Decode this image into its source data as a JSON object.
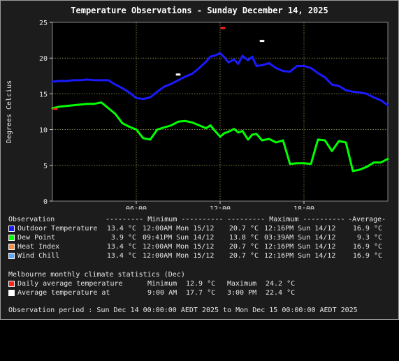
{
  "chart_data": {
    "type": "line",
    "title": "Temperature Observations - Sunday December 14, 2025",
    "ylabel": "Degrees Celcius",
    "xlabel": "",
    "ylim": [
      0,
      25
    ],
    "xlim_hours": [
      0,
      24
    ],
    "yticks": [
      0,
      5,
      10,
      15,
      20,
      25
    ],
    "xticks": [
      {
        "h": 6,
        "label": "06:00"
      },
      {
        "h": 12,
        "label": "12:00"
      },
      {
        "h": 18,
        "label": "18:00"
      }
    ],
    "grid": true,
    "series": [
      {
        "name": "Outdoor Temperature",
        "color": "#1a1aff",
        "x": [
          0,
          0.5,
          1,
          1.5,
          2,
          2.5,
          3,
          3.5,
          4,
          4.5,
          5,
          5.5,
          6,
          6.5,
          7,
          7.5,
          8,
          8.5,
          9,
          9.5,
          10,
          10.5,
          11,
          11.3,
          11.7,
          12,
          12.3,
          12.6,
          13,
          13.3,
          13.6,
          14,
          14.3,
          14.6,
          15,
          15.5,
          16,
          16.5,
          17,
          17.5,
          18,
          18.5,
          19,
          19.5,
          20,
          20.5,
          21,
          21.5,
          22,
          22.5,
          23,
          23.5,
          24
        ],
        "y": [
          16.7,
          16.8,
          16.8,
          16.9,
          16.9,
          17.0,
          16.9,
          16.9,
          16.9,
          16.3,
          15.8,
          15.2,
          14.4,
          14.3,
          14.5,
          15.3,
          16.0,
          16.4,
          16.9,
          17.4,
          17.8,
          18.6,
          19.5,
          20.2,
          20.4,
          20.7,
          20.1,
          19.4,
          19.8,
          19.2,
          20.3,
          19.7,
          20.2,
          18.9,
          19.0,
          19.3,
          18.6,
          18.2,
          18.1,
          18.9,
          18.9,
          18.6,
          17.9,
          17.3,
          16.3,
          16.1,
          15.5,
          15.3,
          15.2,
          15.0,
          14.5,
          14.1,
          13.4
        ]
      },
      {
        "name": "Dew Point",
        "color": "#00ff00",
        "x": [
          0,
          0.5,
          1,
          1.5,
          2,
          2.5,
          3,
          3.5,
          4,
          4.5,
          5,
          5.5,
          6,
          6.5,
          7,
          7.5,
          8,
          8.5,
          9,
          9.5,
          10,
          10.5,
          11,
          11.3,
          11.6,
          12,
          12.3,
          12.6,
          13,
          13.3,
          13.6,
          14,
          14.3,
          14.6,
          15,
          15.5,
          16,
          16.5,
          17,
          17.5,
          18,
          18.5,
          19,
          19.5,
          20,
          20.5,
          21,
          21.5,
          22,
          22.5,
          23,
          23.5,
          24
        ],
        "y": [
          13.0,
          13.2,
          13.3,
          13.4,
          13.5,
          13.6,
          13.6,
          13.8,
          13.0,
          12.2,
          10.9,
          10.4,
          10.0,
          8.8,
          8.6,
          10.0,
          10.3,
          10.6,
          11.1,
          11.2,
          11.0,
          10.6,
          10.2,
          10.6,
          9.9,
          9.0,
          9.5,
          9.7,
          10.1,
          9.6,
          9.8,
          8.6,
          9.3,
          9.4,
          8.5,
          8.7,
          8.2,
          8.5,
          5.2,
          5.3,
          5.3,
          5.2,
          8.6,
          8.5,
          7.0,
          8.4,
          8.2,
          4.2,
          4.4,
          4.8,
          5.4,
          5.4,
          5.9
        ]
      },
      {
        "name": "Heat Index",
        "color": "#ff8c3a",
        "x": [],
        "y": []
      },
      {
        "name": "Wind Chill",
        "color": "#5aa8ff",
        "x": [],
        "y": []
      }
    ],
    "markers": [
      {
        "name": "Daily average temperature max",
        "color": "#ff2020",
        "h": 12.2,
        "value": 24.2
      },
      {
        "name": "Daily average temperature min",
        "color": "#ff2020",
        "h": 0.2,
        "value": 12.9
      },
      {
        "name": "Average temperature at 9:00 AM",
        "color": "#ffffff",
        "h": 9.0,
        "value": 17.7
      },
      {
        "name": "Average temperature at 3:00 PM",
        "color": "#ffffff",
        "h": 15.0,
        "value": 22.4
      }
    ]
  },
  "legend": {
    "header": {
      "observation": "Observation",
      "minimum": "--------- Minimum ----------",
      "maximum": "--------- Maximum ----------",
      "average": "-Average-"
    },
    "rows": [
      {
        "name": "Outdoor Temperature",
        "color": "#1a1aff",
        "min_val": "13.4 °C",
        "min_time": "12:00AM Mon 15/12",
        "max_val": "20.7 °C",
        "max_time": "12:16PM Sun 14/12",
        "avg": "16.9 °C"
      },
      {
        "name": "Dew Point",
        "color": "#00ff00",
        "min_val": "3.9 °C",
        "min_time": "09:41PM Sun 14/12",
        "max_val": "13.8 °C",
        "max_time": "03:39AM Sun 14/12",
        "avg": "9.3 °C"
      },
      {
        "name": "Heat Index",
        "color": "#ff8c3a",
        "min_val": "13.4 °C",
        "min_time": "12:00AM Mon 15/12",
        "max_val": "20.7 °C",
        "max_time": "12:16PM Sun 14/12",
        "avg": "16.9 °C"
      },
      {
        "name": "Wind Chill",
        "color": "#5aa8ff",
        "min_val": "13.4 °C",
        "min_time": "12:00AM Mon 15/12",
        "max_val": "20.7 °C",
        "max_time": "12:16PM Sun 14/12",
        "avg": "16.9 °C"
      }
    ]
  },
  "climate": {
    "title": "Melbourne monthly climate statistics (Dec)",
    "daily": {
      "color": "#ff2020",
      "label": "Daily average temperature",
      "min_label": "Minimum",
      "min_val": "12.9 °C",
      "max_label": "Maximum",
      "max_val": "24.2 °C"
    },
    "at": {
      "color": "#ffffff",
      "label": "Average temperature at",
      "t1": "9:00 AM",
      "v1": "17.7 °C",
      "t2": "3:00 PM",
      "v2": "22.4 °C"
    }
  },
  "period": "Observation period : Sun Dec 14 00:00:00 AEDT 2025 to Mon Dec 15 00:00:00 AEDT 2025"
}
